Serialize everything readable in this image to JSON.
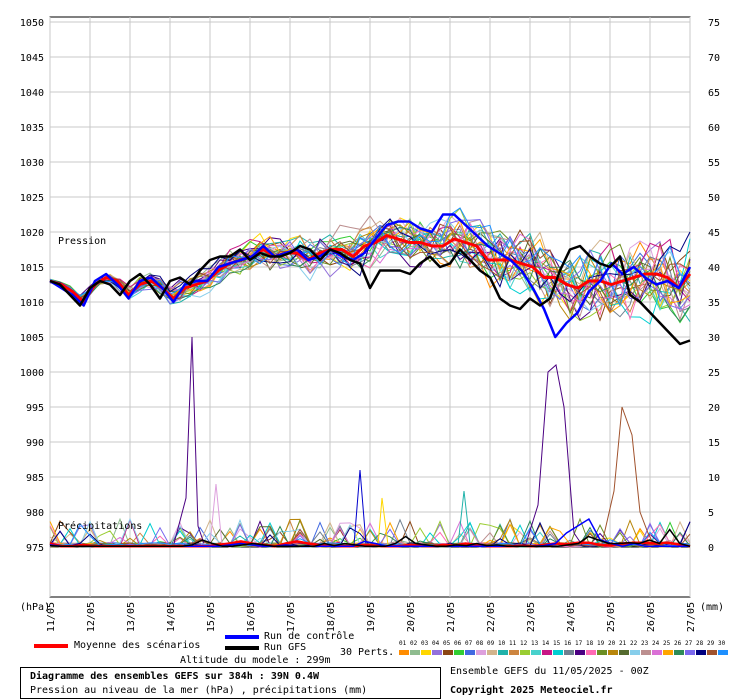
{
  "chart_data": {
    "type": "line",
    "title": "Diagramme des ensembles GEFS sur 384h : 39N 0.4W",
    "subtitle": "Pression au niveau de la mer (hPa) , précipitations (mm)",
    "left_axis": {
      "unit": "(hPa)",
      "ticks": [
        1050,
        1045,
        1040,
        1035,
        1030,
        1025,
        1020,
        1015,
        1010,
        1005,
        1000,
        995,
        990,
        985,
        980,
        975
      ],
      "range": [
        975,
        1050
      ]
    },
    "right_axis": {
      "unit": "(mm)",
      "ticks": [
        75,
        70,
        65,
        60,
        55,
        50,
        45,
        40,
        35,
        30,
        25,
        20,
        15,
        10,
        5,
        0
      ],
      "range": [
        0,
        75
      ]
    },
    "x_labels": [
      "11/05",
      "12/05",
      "13/05",
      "14/05",
      "15/05",
      "16/05",
      "17/05",
      "18/05",
      "19/05",
      "20/05",
      "21/05",
      "22/05",
      "23/05",
      "24/05",
      "25/05",
      "26/05",
      "27/05"
    ],
    "annotations": {
      "pressure": "Pression",
      "precip": "Précipitations"
    },
    "series": [
      {
        "name": "Moyenne des scénarios",
        "color": "#ff0000",
        "pressure": [
          1013.0,
          1012.5,
          1011.5,
          1010.0,
          1012.5,
          1013.5,
          1013.0,
          1011.0,
          1012.5,
          1013.0,
          1012.0,
          1010.5,
          1012.0,
          1012.5,
          1013.0,
          1014.5,
          1015.5,
          1016.0,
          1016.5,
          1017.5,
          1016.5,
          1017.0,
          1017.0,
          1016.0,
          1017.0,
          1017.5,
          1017.5,
          1016.5,
          1018.0,
          1018.5,
          1019.5,
          1019.0,
          1018.5,
          1018.5,
          1018.0,
          1018.0,
          1019.0,
          1018.5,
          1018.0,
          1016.0,
          1016.0,
          1016.0,
          1015.5,
          1015.0,
          1013.5,
          1013.5,
          1012.5,
          1012.0,
          1013.0,
          1013.0,
          1012.5,
          1013.0,
          1013.5,
          1014.0,
          1014.0,
          1013.5,
          1012.0,
          1014.0
        ],
        "precip": [
          0.5,
          0.1,
          0.1,
          0.3,
          0.1,
          0.1,
          0.1,
          0.1,
          0.1,
          0.1,
          0.1,
          0.1,
          0.1,
          0.1,
          0.1,
          0.3,
          0.5,
          0.8,
          0.5,
          0.3,
          0.1,
          0.5,
          0.8,
          0.5,
          0.3,
          0.2,
          0.1,
          0.1,
          0.3,
          0.2,
          0.1,
          0.1,
          0.3,
          0.2,
          0.1,
          0.3,
          0.2,
          0.5,
          0.3,
          0.1,
          0.1,
          0.1,
          0.2,
          0.1,
          0.3,
          0.5,
          0.4,
          0.6,
          0.6,
          0.3,
          0.2,
          0.5,
          0.6,
          0.6,
          0.5,
          0.6,
          0.4,
          0.1
        ]
      },
      {
        "name": "Run de contrôle",
        "color": "#0000ff",
        "pressure": [
          1013.0,
          1012.0,
          1011.0,
          1009.5,
          1013.0,
          1014.0,
          1012.5,
          1010.5,
          1013.0,
          1013.5,
          1012.0,
          1010.0,
          1012.5,
          1013.0,
          1013.0,
          1015.0,
          1015.5,
          1016.0,
          1016.5,
          1018.0,
          1016.5,
          1017.0,
          1017.5,
          1016.0,
          1016.5,
          1017.5,
          1016.5,
          1016.0,
          1017.0,
          1019.0,
          1021.0,
          1021.5,
          1021.5,
          1020.5,
          1020.0,
          1022.5,
          1022.5,
          1021.0,
          1019.5,
          1018.0,
          1017.0,
          1016.0,
          1014.5,
          1012.0,
          1009.0,
          1005.0,
          1007.0,
          1008.5,
          1011.5,
          1013.0,
          1015.5,
          1014.0,
          1015.0,
          1013.5,
          1012.5,
          1013.0,
          1012.0,
          1015.0
        ],
        "precip": [
          0.3,
          0.1,
          0.1,
          0.1,
          0.1,
          0.1,
          0.1,
          0.1,
          0.1,
          0.1,
          0.1,
          0.1,
          0.1,
          0.1,
          0.1,
          0.1,
          0.3,
          0.5,
          0.3,
          0.1,
          0.1,
          0.3,
          0.1,
          0.1,
          0.1,
          0.1,
          0.1,
          0.1,
          0.8,
          0.5,
          0.1,
          0.1,
          0.1,
          0.1,
          0.1,
          0.1,
          0.1,
          0.1,
          0.1,
          0.1,
          0.1,
          0.1,
          0.1,
          0.1,
          0.2,
          0.5,
          2.0,
          3.0,
          4.0,
          1.0,
          0.5,
          0.1,
          0.5,
          0.1,
          0.1,
          0.1,
          0.1,
          0.1
        ]
      },
      {
        "name": "Run GFS",
        "color": "#000000",
        "pressure": [
          1013.0,
          1012.5,
          1011.0,
          1009.5,
          1012.0,
          1013.0,
          1012.5,
          1011.0,
          1013.0,
          1014.0,
          1012.5,
          1010.5,
          1013.0,
          1013.5,
          1012.5,
          1014.5,
          1016.0,
          1016.5,
          1016.5,
          1017.5,
          1016.0,
          1017.0,
          1016.5,
          1016.5,
          1017.0,
          1018.0,
          1017.5,
          1016.0,
          1017.5,
          1017.0,
          1016.0,
          1015.5,
          1012.0,
          1014.5,
          1014.5,
          1014.5,
          1014.0,
          1015.5,
          1016.5,
          1015.0,
          1015.5,
          1017.5,
          1016.0,
          1014.5,
          1013.5,
          1010.5,
          1009.5,
          1009.0,
          1010.5,
          1009.5,
          1010.5,
          1014.5,
          1017.5,
          1018.0,
          1016.5,
          1015.5,
          1015.0,
          1016.5,
          1011.0,
          1010.0,
          1008.5,
          1007.0,
          1005.5,
          1004.0,
          1004.5
        ],
        "precip": [
          0.2,
          0.1,
          0.1,
          0.1,
          0.1,
          0.1,
          0.1,
          0.1,
          0.1,
          0.1,
          0.1,
          0.1,
          0.1,
          0.1,
          0.3,
          1.0,
          0.5,
          0.1,
          0.1,
          0.3,
          0.5,
          0.3,
          0.1,
          0.1,
          0.1,
          0.1,
          0.1,
          0.5,
          0.2,
          0.5,
          0.3,
          0.1,
          0.1,
          0.1,
          0.5,
          1.5,
          0.5,
          0.3,
          0.1,
          0.1,
          0.3,
          0.2,
          0.5,
          0.2,
          0.3,
          0.1,
          0.1,
          0.1,
          0.1,
          0.1,
          0.1,
          0.3,
          0.5,
          1.5,
          1.0,
          0.5,
          0.5,
          0.6,
          0.5,
          1.0,
          0.5,
          2.5,
          0.5,
          0.1
        ]
      }
    ],
    "perturbation_count": 30,
    "perturbation_label": "30 Perts.",
    "perturbation_colors": [
      "#ff8c00",
      "#8fbc8f",
      "#ffd700",
      "#9370db",
      "#8b4513",
      "#32cd32",
      "#4169e1",
      "#dda0dd",
      "#d2b48c",
      "#20b2aa",
      "#cd853f",
      "#9acd32",
      "#48d1cc",
      "#c71585",
      "#00ced1",
      "#708090",
      "#4b0082",
      "#ff69b4",
      "#6b8e23",
      "#b8860b",
      "#556b2f",
      "#87ceeb",
      "#bc8f8f",
      "#da70d6",
      "#ffa500",
      "#2e8b57",
      "#7b68ee",
      "#000080",
      "#a0522d",
      "#1e90ff"
    ],
    "perturbation_ids": [
      "01",
      "02",
      "03",
      "04",
      "05",
      "06",
      "07",
      "08",
      "09",
      "10",
      "11",
      "12",
      "13",
      "14",
      "15",
      "16",
      "17",
      "18",
      "19",
      "20",
      "21",
      "22",
      "23",
      "24",
      "25",
      "26",
      "27",
      "28",
      "29",
      "30"
    ],
    "altitude": "Altitude du modele : 299m",
    "run_info": "Ensemble GEFS du 11/05/2025 - 00Z",
    "copyright": "Copyright 2025 Meteociel.fr"
  },
  "legend": {
    "mean": "Moyenne des scénarios",
    "control": "Run de contrôle",
    "gfs": "Run GFS"
  }
}
